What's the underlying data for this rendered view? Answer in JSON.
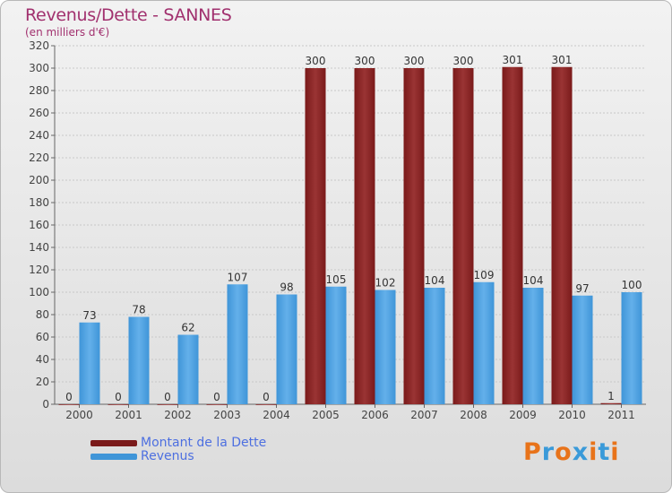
{
  "title": "Revenus/Dette - SANNES",
  "subtitle": "(en milliers d'€)",
  "logo": {
    "text": "Proxiti",
    "colors": [
      "#e8731a",
      "#3a9ad9",
      "#e8731a",
      "#3a9ad9",
      "#e8731a",
      "#3a9ad9",
      "#e8731a"
    ]
  },
  "colors": {
    "debt": "#7a1a1a",
    "debt_light": "#9a3434",
    "revenue": "#3f95d8",
    "revenue_light": "#64b0ea",
    "grid": "#c8c8c8",
    "title": "#a1306e",
    "legend_text": "#4d6fe0"
  },
  "legend": [
    {
      "label": "Montant de la Dette",
      "color": "#7a1a1a"
    },
    {
      "label": "Revenus",
      "color": "#3f95d8"
    }
  ],
  "chart_data": {
    "type": "bar",
    "categories": [
      "2000",
      "2001",
      "2002",
      "2003",
      "2004",
      "2005",
      "2006",
      "2007",
      "2008",
      "2009",
      "2010",
      "2011"
    ],
    "series": [
      {
        "name": "Montant de la Dette",
        "values": [
          0,
          0,
          0,
          0,
          0,
          300,
          300,
          300,
          300,
          301,
          301,
          1
        ]
      },
      {
        "name": "Revenus",
        "values": [
          73,
          78,
          62,
          107,
          98,
          105,
          102,
          104,
          109,
          104,
          97,
          100
        ]
      }
    ],
    "ylim": [
      0,
      320
    ],
    "yticks": [
      0,
      20,
      40,
      60,
      80,
      100,
      120,
      140,
      160,
      180,
      200,
      220,
      240,
      260,
      280,
      300,
      320
    ],
    "grid": true,
    "legend_position": "bottom-left"
  }
}
